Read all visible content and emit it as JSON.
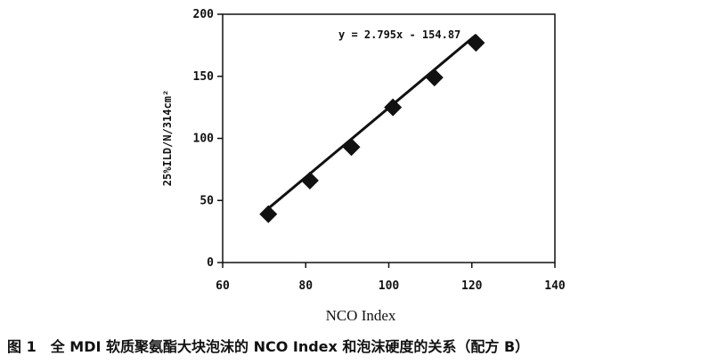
{
  "chart_data": {
    "type": "scatter",
    "xlabel": "NCO Index",
    "ylabel": "25%ILD/N/314cm²",
    "xlim": [
      60,
      140
    ],
    "ylim": [
      0,
      200
    ],
    "xticks": [
      "60",
      "80",
      "100",
      "120",
      "140"
    ],
    "yticks": [
      "0",
      "50",
      "100",
      "150",
      "200"
    ],
    "grid": false,
    "points": [
      {
        "x": 71,
        "y": 39
      },
      {
        "x": 81,
        "y": 66
      },
      {
        "x": 91,
        "y": 93
      },
      {
        "x": 101,
        "y": 125
      },
      {
        "x": 111,
        "y": 149
      },
      {
        "x": 121,
        "y": 177
      }
    ],
    "trendline": {
      "slope": 2.795,
      "intercept": -154.87,
      "x_range": [
        71,
        121
      ]
    },
    "equation": "y = 2.795x - 154.87"
  },
  "caption": "图 1　全 MDI 软质聚氨酯大块泡沫的 NCO Index 和泡沫硬度的关系（配方 B）"
}
